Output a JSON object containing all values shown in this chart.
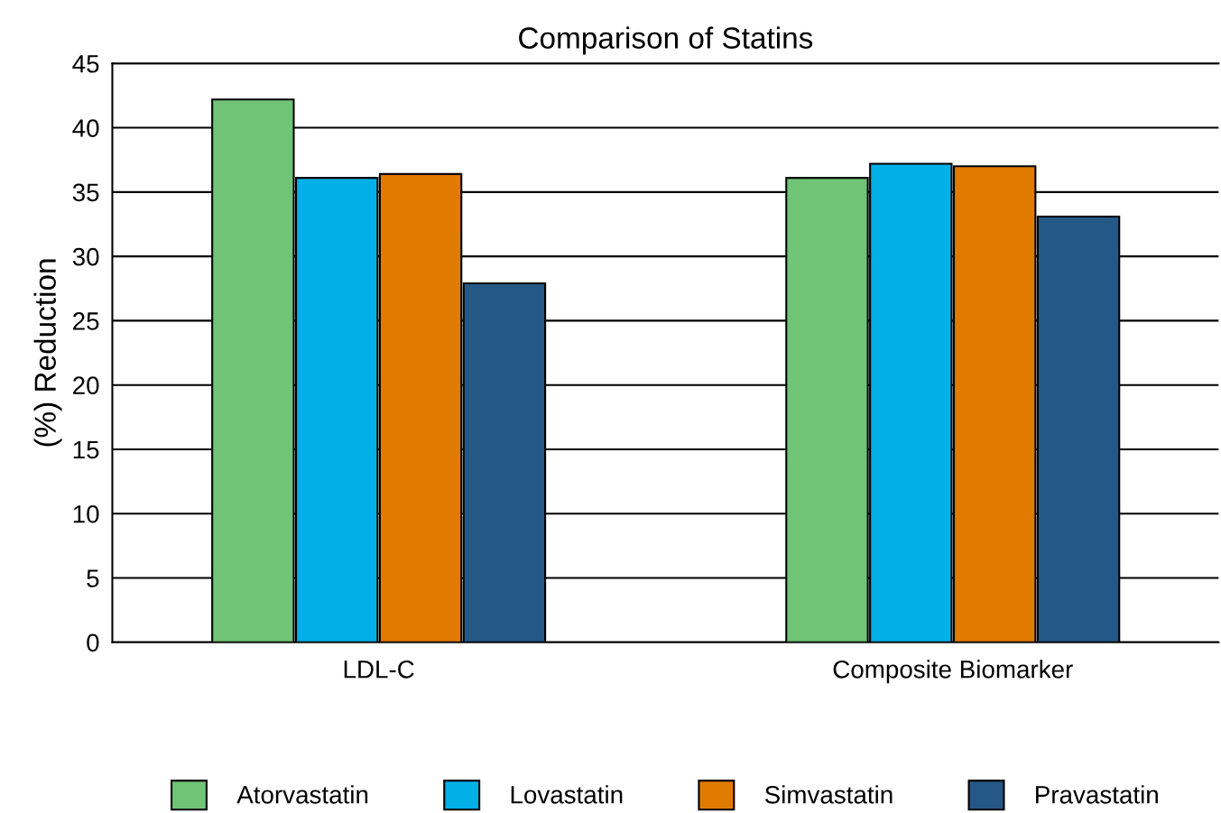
{
  "chart_data": {
    "type": "bar",
    "title": "Comparison of Statins",
    "ylabel": "(%) Reduction",
    "categories": [
      "LDL-C",
      "Composite Biomarker"
    ],
    "series": [
      {
        "name": "Atorvastatin",
        "color": "#70c475",
        "values": [
          42.2,
          36.1
        ]
      },
      {
        "name": "Lovastatin",
        "color": "#00b0e6",
        "values": [
          36.1,
          37.2
        ]
      },
      {
        "name": "Simvastatin",
        "color": "#e07b00",
        "values": [
          36.4,
          37.0
        ]
      },
      {
        "name": "Pravastatin",
        "color": "#245886",
        "values": [
          27.9,
          33.1
        ]
      }
    ],
    "ylim": [
      0,
      45
    ],
    "yticks": [
      0,
      5,
      10,
      15,
      20,
      25,
      30,
      35,
      40,
      45
    ],
    "grid": "y",
    "legend": "bottom"
  }
}
